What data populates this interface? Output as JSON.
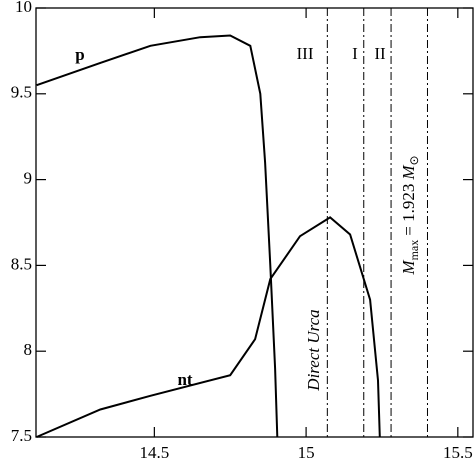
{
  "chart_data": {
    "type": "line",
    "xlim": [
      14.11,
      15.55
    ],
    "ylim": [
      7.5,
      10
    ],
    "xticks": [
      14.5,
      15,
      15.5
    ],
    "yticks": [
      7.5,
      8,
      8.5,
      9,
      9.5,
      10
    ],
    "series": [
      {
        "name": "p",
        "color": "#000000",
        "x": [
          14.112,
          14.322,
          14.487,
          14.651,
          14.75,
          14.816,
          14.849,
          14.865,
          14.882,
          14.898,
          14.905
        ],
        "values": [
          9.55,
          9.68,
          9.78,
          9.83,
          9.84,
          9.78,
          9.5,
          9.1,
          8.5,
          7.9,
          7.5
        ]
      },
      {
        "name": "nt",
        "color": "#000000",
        "x": [
          14.112,
          14.322,
          14.487,
          14.75,
          14.832,
          14.882,
          14.98,
          15.079,
          15.145,
          15.211,
          15.237,
          15.243
        ],
        "values": [
          7.5,
          7.66,
          7.74,
          7.86,
          8.07,
          8.42,
          8.67,
          8.78,
          8.68,
          8.3,
          7.83,
          7.5
        ]
      }
    ],
    "vlines": [
      15.07,
      15.19,
      15.28,
      15.4
    ],
    "annotations": [
      "III",
      "I",
      "II",
      "Direct Urca"
    ],
    "mmax_label": [
      "M",
      "max",
      "= 1.923",
      "M",
      "⊙"
    ]
  }
}
